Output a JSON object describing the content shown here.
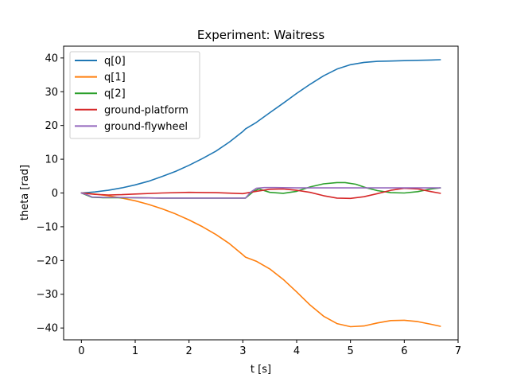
{
  "chart_data": {
    "type": "line",
    "title": "Experiment: Waitress",
    "xlabel": "t [s]",
    "ylabel": "theta [rad]",
    "xlim": [
      -0.33,
      7.0
    ],
    "ylim": [
      -43.5,
      43.5
    ],
    "xticks": [
      0,
      1,
      2,
      3,
      4,
      5,
      6,
      7
    ],
    "yticks": [
      -40,
      -30,
      -20,
      -10,
      0,
      10,
      20,
      30,
      40
    ],
    "grid": false,
    "legend_position": "top-left",
    "series": [
      {
        "name": "q[0]",
        "color": "#1f77b4",
        "x": [
          0,
          0.25,
          0.5,
          0.75,
          1,
          1.25,
          1.5,
          1.75,
          2,
          2.25,
          2.5,
          2.75,
          3,
          3.05,
          3.25,
          3.5,
          3.75,
          4,
          4.25,
          4.5,
          4.75,
          5,
          5.25,
          5.5,
          5.75,
          6,
          6.25,
          6.5,
          6.67
        ],
        "y": [
          0,
          0.3,
          0.8,
          1.5,
          2.4,
          3.5,
          4.9,
          6.4,
          8.2,
          10.2,
          12.4,
          15.1,
          18.2,
          19.0,
          20.9,
          23.8,
          26.6,
          29.5,
          32.2,
          34.7,
          36.7,
          38.0,
          38.7,
          39.0,
          39.1,
          39.2,
          39.3,
          39.4,
          39.5
        ]
      },
      {
        "name": "q[1]",
        "color": "#ff7f0e",
        "x": [
          0,
          0.25,
          0.5,
          0.75,
          1,
          1.25,
          1.5,
          1.75,
          2,
          2.25,
          2.5,
          2.75,
          3,
          3.05,
          3.25,
          3.5,
          3.75,
          4,
          4.25,
          4.5,
          4.75,
          5,
          5.25,
          5.5,
          5.75,
          6,
          6.25,
          6.5,
          6.67
        ],
        "y": [
          0,
          -0.3,
          -0.8,
          -1.5,
          -2.3,
          -3.4,
          -4.7,
          -6.2,
          -8.0,
          -10.0,
          -12.3,
          -15.0,
          -18.3,
          -19.0,
          -20.2,
          -22.5,
          -25.6,
          -29.3,
          -33.2,
          -36.5,
          -38.7,
          -39.6,
          -39.4,
          -38.5,
          -37.8,
          -37.7,
          -38.1,
          -38.9,
          -39.5
        ]
      },
      {
        "name": "q[2]",
        "color": "#2ca02c",
        "x": [
          0,
          0.2,
          0.4,
          0.7,
          1,
          1.5,
          2,
          2.5,
          3.05,
          3.2,
          3.3,
          3.5,
          3.75,
          4,
          4.25,
          4.5,
          4.75,
          4.9,
          5.1,
          5.3,
          5.5,
          5.75,
          6,
          6.25,
          6.5,
          6.67
        ],
        "y": [
          0,
          -1.3,
          -1.4,
          -1.4,
          -1.4,
          -1.5,
          -1.5,
          -1.5,
          -1.5,
          0.5,
          1.2,
          0.2,
          -0.1,
          0.5,
          1.8,
          2.7,
          3.1,
          3.1,
          2.6,
          1.5,
          0.7,
          0.1,
          0.0,
          0.4,
          1.2,
          1.5
        ]
      },
      {
        "name": "ground-platform",
        "color": "#d62728",
        "x": [
          0,
          0.25,
          0.5,
          0.75,
          1,
          1.5,
          2,
          2.5,
          3,
          3.25,
          3.5,
          3.75,
          4,
          4.25,
          4.5,
          4.75,
          5,
          5.25,
          5.5,
          5.75,
          6,
          6.25,
          6.5,
          6.67
        ],
        "y": [
          0,
          -0.4,
          -0.6,
          -0.5,
          -0.3,
          0.0,
          0.2,
          0.1,
          -0.2,
          0.5,
          1.1,
          1.2,
          0.8,
          0.2,
          -0.8,
          -1.5,
          -1.6,
          -1.1,
          -0.2,
          0.8,
          1.4,
          1.2,
          0.4,
          -0.1
        ]
      },
      {
        "name": "ground-flywheel",
        "color": "#9467bd",
        "x": [
          0,
          0.1,
          0.2,
          0.4,
          0.7,
          1,
          1.5,
          2,
          2.5,
          3.05,
          3.15,
          3.25,
          3.4,
          3.6,
          4,
          4.5,
          5,
          5.5,
          6,
          6.5,
          6.67
        ],
        "y": [
          0,
          -0.5,
          -1.2,
          -1.3,
          -1.3,
          -1.4,
          -1.5,
          -1.5,
          -1.5,
          -1.5,
          0.3,
          1.4,
          1.6,
          1.6,
          1.5,
          1.5,
          1.5,
          1.5,
          1.5,
          1.5,
          1.5
        ]
      }
    ]
  }
}
